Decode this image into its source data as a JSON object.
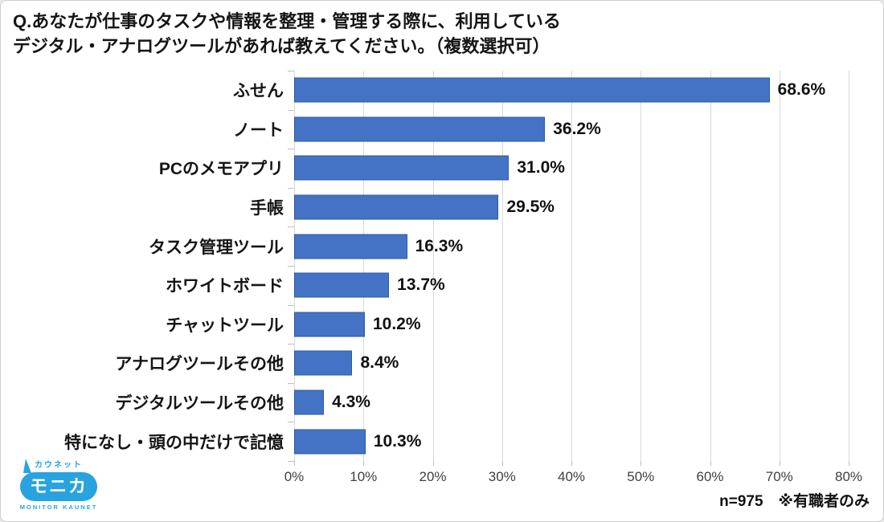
{
  "chart_data": {
    "type": "bar",
    "orientation": "horizontal",
    "title": "Q.あなたが仕事のタスクや情報を整理・管理する際に、利用しているデジタル・アナログツールがあれば教えてください。（複数選択可）",
    "title_lines": [
      "Q.あなたが仕事のタスクや情報を整理・管理する際に、利用している",
      "デジタル・アナログツールがあれば教えてください。（複数選択可）"
    ],
    "categories": [
      "ふせん",
      "ノート",
      "PCのメモアプリ",
      "手帳",
      "タスク管理ツール",
      "ホワイトボード",
      "チャットツール",
      "アナログツールその他",
      "デジタルツールその他",
      "特になし・頭の中だけで記憶"
    ],
    "values": [
      68.6,
      36.2,
      31.0,
      29.5,
      16.3,
      13.7,
      10.2,
      8.4,
      4.3,
      10.3
    ],
    "unit": "%",
    "xlim": [
      0,
      80
    ],
    "x_tick_labels": [
      "0%",
      "10%",
      "20%",
      "30%",
      "40%",
      "50%",
      "60%",
      "70%",
      "80%"
    ],
    "grid": true,
    "legend": "none",
    "bar_color": "#4472C4",
    "bar_border_color": "#2E5B9F",
    "gridline_color": "#D9D9D9"
  },
  "footer": {
    "note": "n=975　※有職者のみ"
  },
  "logo": {
    "kaunet": "カウネット",
    "monica": "モニカ",
    "monitor": "MONITOR KAUNET"
  }
}
